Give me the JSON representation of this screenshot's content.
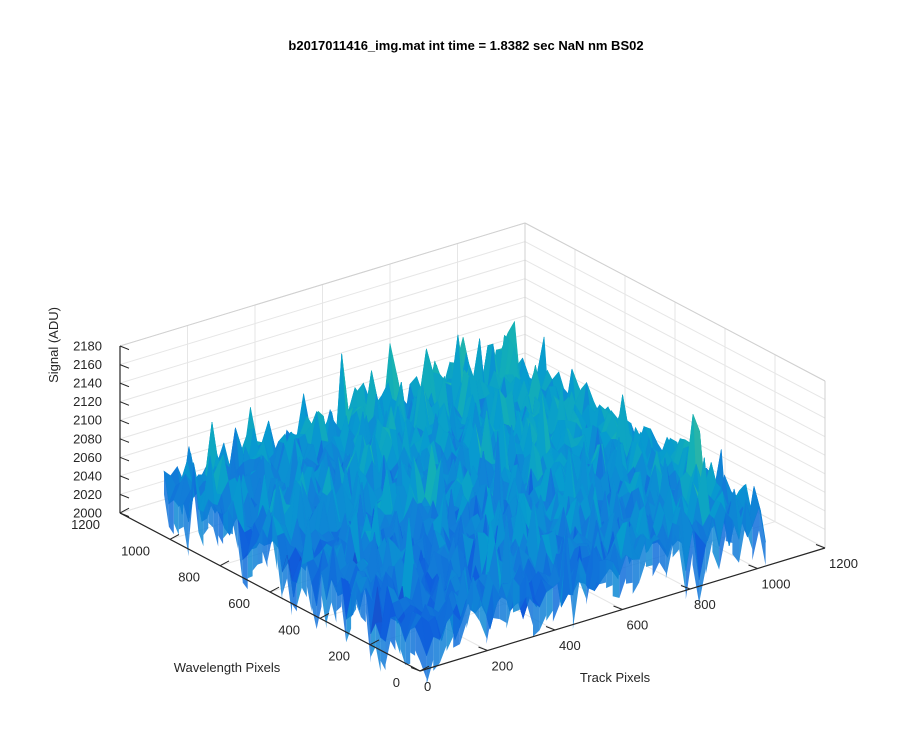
{
  "chart_data": {
    "type": "surface",
    "title": "b2017011416_img.mat int time = 1.8382 sec  NaN nm BS02",
    "xlabel": "Track Pixels",
    "ylabel": "Wavelength Pixels",
    "zlabel": "Signal (ADU)",
    "xlim": [
      0,
      1200
    ],
    "ylim": [
      0,
      1200
    ],
    "zlim": [
      2000,
      2180
    ],
    "x_ticks": [
      0,
      200,
      400,
      600,
      800,
      1000,
      1200
    ],
    "y_ticks": [
      0,
      200,
      400,
      600,
      800,
      1000,
      1200
    ],
    "z_ticks": [
      2000,
      2020,
      2040,
      2060,
      2080,
      2100,
      2120,
      2140,
      2160,
      2180
    ],
    "grid": true,
    "colormap": "parula",
    "surface": {
      "x_extent": [
        0,
        1024
      ],
      "y_extent": [
        0,
        1024
      ],
      "signal_corners": {
        "x0_y0": 2040,
        "x1024_y0": 2060,
        "x0_y1024": 2055,
        "x1024_y1024": 2080
      },
      "noise_amplitude": 35
    }
  }
}
